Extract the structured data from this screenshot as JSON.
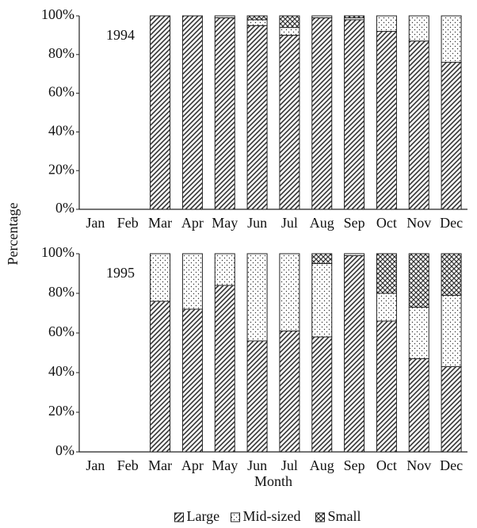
{
  "chart_data": [
    {
      "type": "bar",
      "stacked": true,
      "annotation": "1994",
      "ylabel": "Percentage",
      "categories": [
        "Jan",
        "Feb",
        "Mar",
        "Apr",
        "May",
        "Jun",
        "Jul",
        "Aug",
        "Sep",
        "Oct",
        "Nov",
        "Dec"
      ],
      "series": [
        {
          "color": "#333333",
          "values": [
            null,
            null,
            100,
            100,
            99,
            95,
            90,
            99,
            98,
            92,
            87,
            76
          ]
        },
        {
          "color": "#333333",
          "values": [
            null,
            null,
            0,
            0,
            1,
            3,
            4,
            1,
            1,
            8,
            13,
            24
          ]
        },
        {
          "color": "#333333",
          "values": [
            null,
            null,
            0,
            0,
            0,
            2,
            6,
            0,
            1,
            0,
            0,
            0
          ]
        }
      ],
      "ylim": [
        0,
        100
      ],
      "yticks": [
        {
          "value": 0,
          "label": "0%"
        },
        {
          "value": 20,
          "label": "20%"
        },
        {
          "value": 40,
          "label": "40%"
        },
        {
          "value": 60,
          "label": "60%"
        },
        {
          "value": 80,
          "label": "80%"
        },
        {
          "value": 100,
          "label": "100%"
        }
      ]
    },
    {
      "type": "bar",
      "stacked": true,
      "annotation": "1995",
      "xlabel": "Month",
      "legend": "bottom",
      "categories": [
        "Jan",
        "Feb",
        "Mar",
        "Apr",
        "May",
        "Jun",
        "Jul",
        "Aug",
        "Sep",
        "Oct",
        "Nov",
        "Dec"
      ],
      "series": [
        {
          "name": "Large",
          "color": "#333333",
          "values": [
            null,
            null,
            76,
            72,
            84,
            56,
            61,
            58,
            99,
            66,
            47,
            43
          ]
        },
        {
          "name": "Mid-sized",
          "color": "#333333",
          "values": [
            null,
            null,
            24,
            28,
            16,
            44,
            39,
            37,
            1,
            14,
            26,
            36
          ]
        },
        {
          "name": "Small",
          "color": "#333333",
          "values": [
            null,
            null,
            0,
            0,
            0,
            0,
            0,
            5,
            0,
            20,
            27,
            21
          ]
        }
      ],
      "ylim": [
        0,
        100
      ],
      "yticks": [
        {
          "value": 0,
          "label": "0%"
        },
        {
          "value": 20,
          "label": "20%"
        },
        {
          "value": 40,
          "label": "40%"
        },
        {
          "value": 60,
          "label": "60%"
        },
        {
          "value": 80,
          "label": "80%"
        },
        {
          "value": 100,
          "label": "100%"
        }
      ]
    }
  ]
}
